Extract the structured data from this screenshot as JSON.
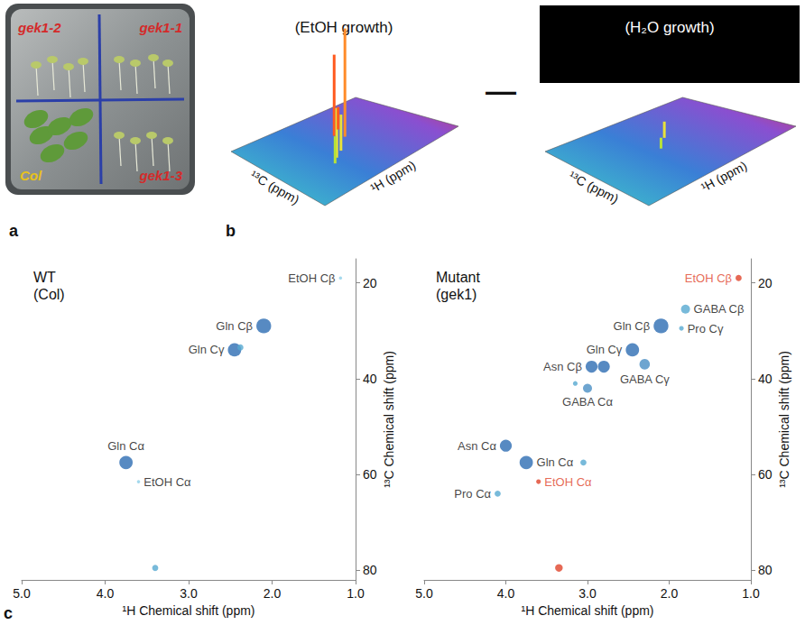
{
  "panel_a": {
    "letter": "a",
    "labels": [
      {
        "text": "gek1-2",
        "color": "#d42a2a"
      },
      {
        "text": "gek1-1",
        "color": "#d42a2a"
      },
      {
        "text": "Col",
        "color": "#e8c21a"
      },
      {
        "text": "gek1-3",
        "color": "#d42a2a"
      }
    ]
  },
  "panel_b": {
    "letter": "b",
    "operator": "—",
    "spectra": [
      {
        "title": "(EtOH growth)",
        "x_label": "¹H (ppm)",
        "y_label": "¹³C (ppm)"
      },
      {
        "title": "(H₂O growth)",
        "x_label": "¹H (ppm)",
        "y_label": "¹³C (ppm)"
      }
    ]
  },
  "panel_c": {
    "letter": "c"
  },
  "chart_data": [
    {
      "type": "scatter",
      "title": [
        "WT",
        "(Col)"
      ],
      "x_label": "¹H Chemical shift (ppm)",
      "y_label": "¹³C Chemical shift (ppm)",
      "xlim": [
        5,
        1
      ],
      "ylim": [
        82,
        15
      ],
      "xticks": [
        {
          "value": 5,
          "label": "5.0"
        },
        {
          "value": 4,
          "label": "4.0"
        },
        {
          "value": 3,
          "label": "3.0"
        },
        {
          "value": 2,
          "label": "2.0"
        },
        {
          "value": 1,
          "label": "1.0"
        }
      ],
      "yticks": [
        20,
        40,
        60,
        80
      ],
      "points": [
        {
          "x": 1.18,
          "y": 19,
          "size": 1,
          "color": "#8fd0e8",
          "label": "EtOH Cβ"
        },
        {
          "x": 2.1,
          "y": 29,
          "size": 9,
          "color": "#2d6db3",
          "label": "Gln Cβ"
        },
        {
          "x": 2.45,
          "y": 34,
          "size": 8,
          "color": "#2d6db3",
          "label": "Gln Cγ"
        },
        {
          "x": 2.38,
          "y": 33.5,
          "size": 3,
          "color": "#56a9d1",
          "label": null
        },
        {
          "x": 3.75,
          "y": 57.5,
          "size": 8,
          "color": "#2d6db3",
          "label": "Gln Cα"
        },
        {
          "x": 3.6,
          "y": 61.5,
          "size": 1,
          "color": "#8fd0e8",
          "label": "EtOH Cα"
        },
        {
          "x": 3.4,
          "y": 79.5,
          "size": 3,
          "color": "#56a9d1",
          "label": null
        }
      ]
    },
    {
      "type": "scatter",
      "title": [
        "Mutant",
        "(gek1)"
      ],
      "x_label": "¹H Chemical shift (ppm)",
      "y_label": "¹³C Chemical shift (ppm)",
      "xlim": [
        5,
        1
      ],
      "ylim": [
        82,
        15
      ],
      "xticks": [
        {
          "value": 5,
          "label": "5.0"
        },
        {
          "value": 4,
          "label": "4.0"
        },
        {
          "value": 3,
          "label": "3.0"
        },
        {
          "value": 2,
          "label": "2.0"
        },
        {
          "value": 1,
          "label": "1.0"
        }
      ],
      "yticks": [
        20,
        40,
        60,
        80
      ],
      "points": [
        {
          "x": 1.15,
          "y": 19,
          "size": 3,
          "color": "#e0442a",
          "label": {
            "text": "EtOH Cβ",
            "color": "#e0442a"
          }
        },
        {
          "x": 1.8,
          "y": 25.5,
          "size": 5,
          "color": "#56a9d1",
          "label": "GABA Cβ"
        },
        {
          "x": 1.85,
          "y": 29.5,
          "size": 2,
          "color": "#56a9d1",
          "label": "Pro Cγ"
        },
        {
          "x": 2.1,
          "y": 29,
          "size": 9,
          "color": "#2d6db3",
          "label": "Gln Cβ"
        },
        {
          "x": 2.45,
          "y": 34,
          "size": 8,
          "color": "#2d6db3",
          "label": "Gln Cγ"
        },
        {
          "x": 2.95,
          "y": 37.5,
          "size": 7,
          "color": "#2d6db3",
          "label": "Asn Cβ"
        },
        {
          "x": 2.8,
          "y": 37.5,
          "size": 7,
          "color": "#2d6db3",
          "label": null
        },
        {
          "x": 2.3,
          "y": 37,
          "size": 6,
          "color": "#4a8fc4",
          "label": "GABA Cγ"
        },
        {
          "x": 3.0,
          "y": 42,
          "size": 5,
          "color": "#4a8fc4",
          "label": "GABA Cα"
        },
        {
          "x": 3.15,
          "y": 41,
          "size": 2,
          "color": "#56a9d1",
          "label": null
        },
        {
          "x": 4.0,
          "y": 54,
          "size": 7,
          "color": "#2d6db3",
          "label": "Asn Cα"
        },
        {
          "x": 3.75,
          "y": 57.5,
          "size": 8,
          "color": "#2d6db3",
          "label": "Gln Cα"
        },
        {
          "x": 3.05,
          "y": 57.5,
          "size": 3,
          "color": "#56a9d1",
          "label": null
        },
        {
          "x": 3.6,
          "y": 61.5,
          "size": 2,
          "color": "#e0442a",
          "label": {
            "text": "EtOH Cα",
            "color": "#e0442a"
          }
        },
        {
          "x": 4.1,
          "y": 64,
          "size": 3,
          "color": "#56a9d1",
          "label": "Pro Cα"
        },
        {
          "x": 3.35,
          "y": 79.5,
          "size": 4,
          "color": "#e0442a",
          "label": null
        }
      ]
    }
  ]
}
